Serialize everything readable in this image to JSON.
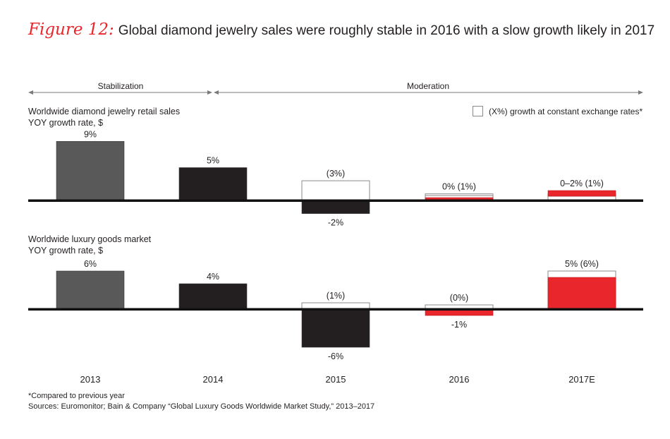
{
  "title": {
    "figure_label": "Figure 12:",
    "text": "Global diamond jewelry sales were roughly stable in 2016 with a slow growth likely in 2017"
  },
  "colors": {
    "accent_red": "#e8262b",
    "dark_bar": "#231f20",
    "gray_bar": "#595959",
    "outline": "#8a8a8a"
  },
  "phases": [
    {
      "label": "Stabilization",
      "span": [
        "2013",
        "2014"
      ]
    },
    {
      "label": "Moderation",
      "span": [
        "2014",
        "2017E"
      ]
    }
  ],
  "legend": {
    "box_label": "(X%) growth at constant exchange rates*"
  },
  "footnotes": {
    "note": "*Compared to previous year",
    "sources": "Sources: Euromonitor; Bain & Company “Global Luxury Goods Worldwide Market Study,” 2013–2017"
  },
  "chart_data": [
    {
      "type": "bar",
      "title": "Worldwide diamond jewelry retail sales",
      "subtitle": "YOY growth rate, $",
      "categories": [
        "2013",
        "2014",
        "2015",
        "2016",
        "2017E"
      ],
      "series": [
        {
          "name": "YOY growth rate, $",
          "values": [
            9,
            5,
            -2,
            0.3,
            1.5
          ],
          "value_range_2017E": [
            0,
            2
          ]
        },
        {
          "name": "growth at constant exchange rates",
          "values": [
            null,
            null,
            3,
            1,
            1
          ]
        }
      ],
      "bar_colors": [
        "#595959",
        "#231f20",
        "#231f20",
        "#e8262b",
        "#e8262b"
      ],
      "data_labels": [
        "9%",
        "5%",
        "-2%",
        "0%  (1%)",
        "0–2% (1%)"
      ],
      "constant_fx_labels": [
        null,
        null,
        "(3%)",
        null,
        null
      ],
      "xlabel": "",
      "ylabel": "",
      "ylim": [
        -3,
        9
      ]
    },
    {
      "type": "bar",
      "title": "Worldwide luxury goods market",
      "subtitle": "YOY growth rate, $",
      "categories": [
        "2013",
        "2014",
        "2015",
        "2016",
        "2017E"
      ],
      "series": [
        {
          "name": "YOY growth rate, $",
          "values": [
            6,
            4,
            -6,
            -1,
            5
          ]
        },
        {
          "name": "growth at constant exchange rates",
          "values": [
            null,
            null,
            1,
            0,
            6
          ]
        }
      ],
      "bar_colors": [
        "#595959",
        "#231f20",
        "#231f20",
        "#e8262b",
        "#e8262b"
      ],
      "data_labels": [
        "6%",
        "4%",
        "-6%",
        "-1%",
        "5% (6%)"
      ],
      "constant_fx_labels": [
        null,
        null,
        "(1%)",
        "(0%)",
        null
      ],
      "xlabel": "",
      "ylabel": "",
      "ylim": [
        -7,
        7
      ]
    }
  ]
}
